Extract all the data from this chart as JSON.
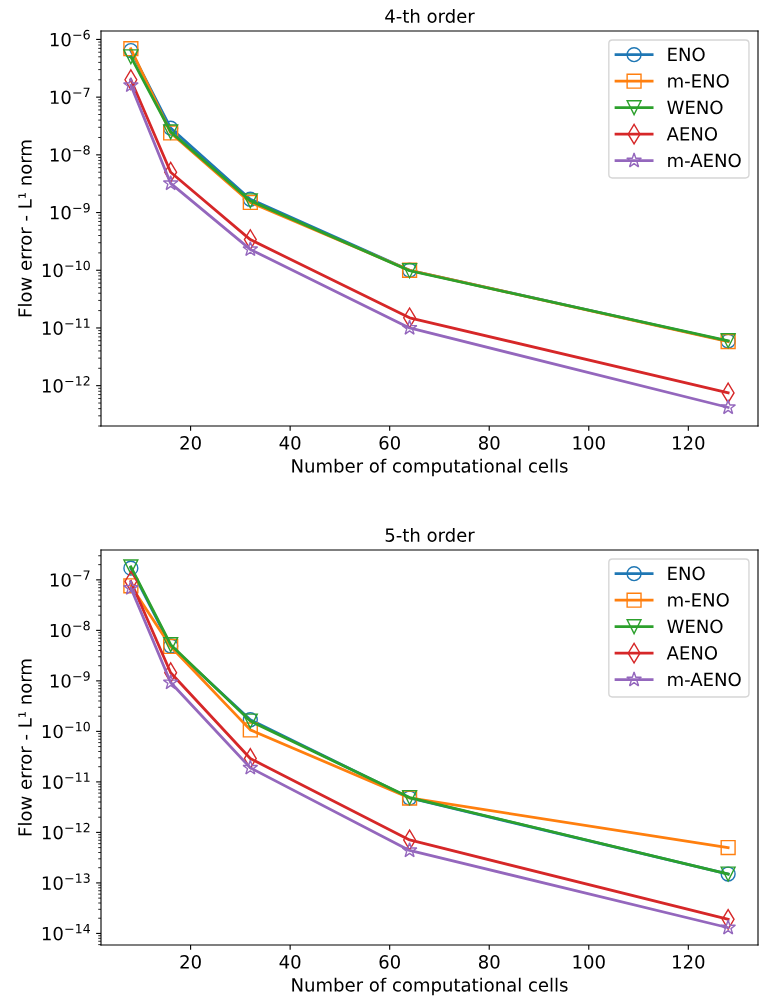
{
  "chart_data": [
    {
      "type": "line",
      "title": "4-th order",
      "xlabel": "Number of computational cells",
      "ylabel": "Flow error - L¹ norm",
      "log": "y",
      "legend": "top right",
      "grid": false,
      "xlim": [
        2,
        134
      ],
      "xticks": [
        20,
        40,
        60,
        80,
        100,
        120
      ],
      "ylim": [
        2e-13,
        1.4e-06
      ],
      "yticks": [
        {
          "value": 1e-12,
          "label": "10$^{−12}$"
        },
        {
          "value": 1e-11,
          "label": "10$^{−11}$"
        },
        {
          "value": 1e-10,
          "label": "10$^{−10}$"
        },
        {
          "value": 1e-09,
          "label": "10$^{−9}$"
        },
        {
          "value": 1e-08,
          "label": "10$^{−8}$"
        },
        {
          "value": 1e-07,
          "label": "10$^{−7}$"
        },
        {
          "value": 1e-06,
          "label": "10$^{−6}$"
        }
      ],
      "x": [
        8,
        16,
        32,
        64,
        128
      ],
      "series": [
        {
          "name": "ENO",
          "color": "#1f77b4",
          "marker": "circle",
          "values": [
            6.4e-07,
            2.9e-08,
            1.7e-09,
            1e-10,
            5.9e-12
          ]
        },
        {
          "name": "m-ENO",
          "color": "#ff7f0e",
          "marker": "square",
          "values": [
            6.9e-07,
            2.4e-08,
            1.5e-09,
            1e-10,
            5.8e-12
          ]
        },
        {
          "name": "WENO",
          "color": "#2ca02c",
          "marker": "triangle",
          "values": [
            5e-07,
            2.5e-08,
            1.6e-09,
            9.8e-11,
            6e-12
          ]
        },
        {
          "name": "AENO",
          "color": "#d62728",
          "marker": "diamond",
          "values": [
            2e-07,
            5e-09,
            3.4e-10,
            1.5e-11,
            7.5e-13
          ]
        },
        {
          "name": "m-AENO",
          "color": "#9467bd",
          "marker": "star",
          "values": [
            1.6e-07,
            3.2e-09,
            2.3e-10,
            1e-11,
            4.2e-13
          ]
        }
      ]
    },
    {
      "type": "line",
      "title": "5-th order",
      "xlabel": "Number of computational cells",
      "ylabel": "Flow error - L¹ norm",
      "log": "y",
      "legend": "top right",
      "grid": false,
      "xlim": [
        2,
        134
      ],
      "xticks": [
        20,
        40,
        60,
        80,
        100,
        120
      ],
      "ylim": [
        5.9e-15,
        3.9e-07
      ],
      "yticks": [
        {
          "value": 1e-14,
          "label": "10$^{−14}$"
        },
        {
          "value": 1e-13,
          "label": "10$^{−13}$"
        },
        {
          "value": 1e-12,
          "label": "10$^{−12}$"
        },
        {
          "value": 1e-11,
          "label": "10$^{−11}$"
        },
        {
          "value": 1e-10,
          "label": "10$^{−10}$"
        },
        {
          "value": 1e-09,
          "label": "10$^{−9}$"
        },
        {
          "value": 1e-08,
          "label": "10$^{−8}$"
        },
        {
          "value": 1e-07,
          "label": "10$^{−7}$"
        }
      ],
      "x": [
        8,
        16,
        32,
        64,
        128
      ],
      "series": [
        {
          "name": "ENO",
          "color": "#1f77b4",
          "marker": "circle",
          "values": [
            1.7e-07,
            4.9e-09,
            1.7e-10,
            4.8e-12,
            1.5e-13
          ]
        },
        {
          "name": "m-ENO",
          "color": "#ff7f0e",
          "marker": "square",
          "values": [
            7.6e-08,
            4.8e-09,
            1.07e-10,
            4.8e-12,
            5e-13
          ]
        },
        {
          "name": "WENO",
          "color": "#2ca02c",
          "marker": "triangle",
          "values": [
            1.8e-07,
            5.2e-09,
            1.6e-10,
            4.9e-12,
            1.5e-13
          ]
        },
        {
          "name": "AENO",
          "color": "#d62728",
          "marker": "diamond",
          "values": [
            9.3e-08,
            1.45e-09,
            2.9e-11,
            7.1e-13,
            1.9e-14
          ]
        },
        {
          "name": "m-AENO",
          "color": "#9467bd",
          "marker": "star",
          "values": [
            6.9e-08,
            9.3e-10,
            1.9e-11,
            4.4e-13,
            1.3e-14
          ]
        }
      ]
    }
  ]
}
